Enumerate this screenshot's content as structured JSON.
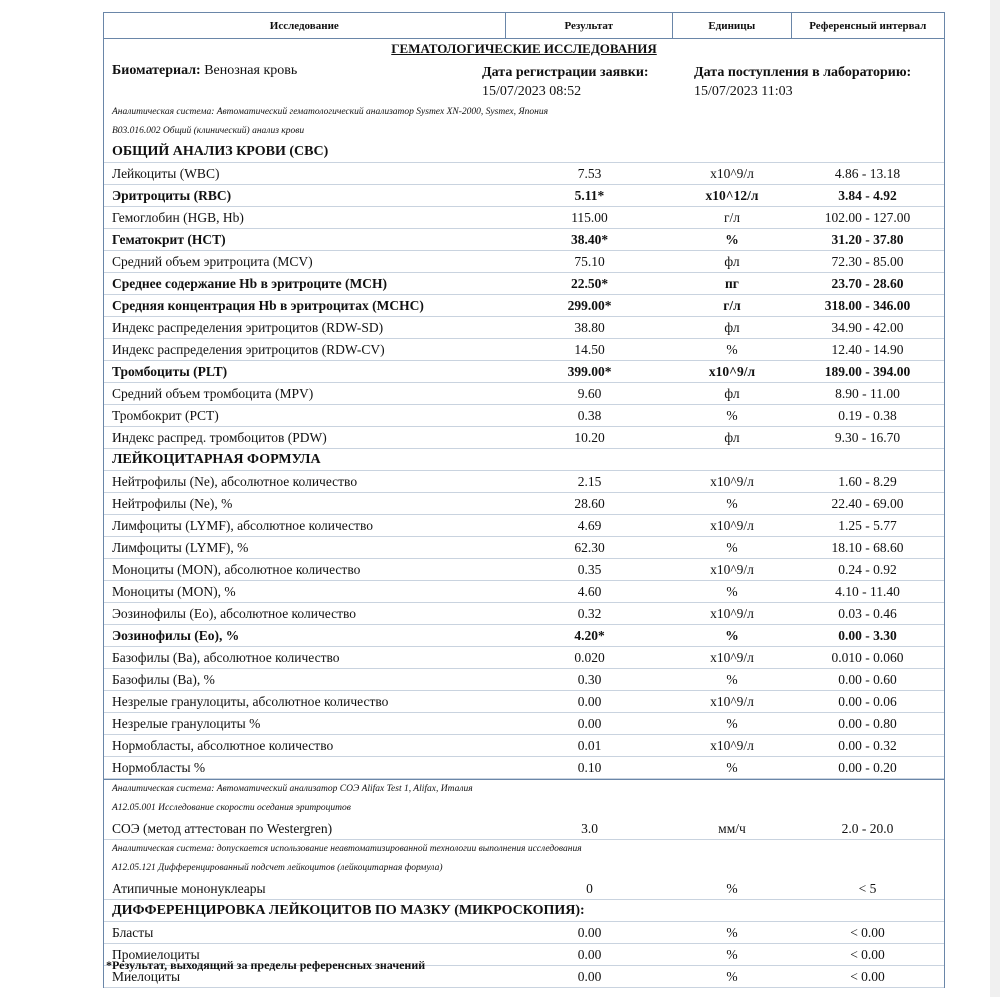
{
  "header": {
    "study": "Исследование",
    "result": "Результат",
    "units": "Единицы",
    "reference": "Референсный интервал"
  },
  "section_title": "ГЕМАТОЛОГИЧЕСКИЕ ИССЛЕДОВАНИЯ",
  "biomaterial": {
    "label": "Биоматериал:",
    "value": "Венозная кровь"
  },
  "registration": {
    "label": "Дата регистрации заявки:",
    "value": "15/07/2023 08:52"
  },
  "arrival": {
    "label": "Дата поступления в лабораторию:",
    "value": "15/07/2023 11:03"
  },
  "notes": [
    "Аналитическая система: Автоматический гематологический анализатор Sysmex XN-2000, Sysmex, Япония",
    "B03.016.002 Общий (клинический) анализ крови",
    "Аналитическая система: Автоматический анализатор СОЭ Alifax Test 1, Alifax, Италия",
    "A12.05.001 Исследование скорости оседания эритроцитов",
    "Аналитическая система: допускается использование неавтоматизированной технологии выполнения исследования",
    "A12.05.121 Дифференцированный подсчет лейкоцитов (лейкоцитарная формула)"
  ],
  "cbc": [
    {
      "name": "ОБЩИЙ АНАЛИЗ КРОВИ (CBC)",
      "section": true
    },
    {
      "name": "Лейкоциты (WBC)",
      "result": "7.53",
      "units": "x10^9/л",
      "ref": "4.86 - 13.18"
    },
    {
      "name": "Эритроциты (RBC)",
      "result": "5.11*",
      "units": "x10^12/л",
      "ref": "3.84 - 4.92",
      "flag": true
    },
    {
      "name": "Гемоглобин (HGB, Hb)",
      "result": "115.00",
      "units": "г/л",
      "ref": "102.00 - 127.00"
    },
    {
      "name": "Гематокрит (HCT)",
      "result": "38.40*",
      "units": "%",
      "ref": "31.20 - 37.80",
      "flag": true
    },
    {
      "name": "Средний объем эритроцита (MCV)",
      "result": "75.10",
      "units": "фл",
      "ref": "72.30 - 85.00"
    },
    {
      "name": "Среднее содержание Hb в эритроците (MCH)",
      "result": "22.50*",
      "units": "пг",
      "ref": "23.70 - 28.60",
      "flag": true
    },
    {
      "name": "Средняя концентрация Hb в эритроцитах (MCHC)",
      "result": "299.00*",
      "units": "г/л",
      "ref": "318.00 - 346.00",
      "flag": true
    },
    {
      "name": "Индекс распределения эритроцитов (RDW-SD)",
      "result": "38.80",
      "units": "фл",
      "ref": "34.90 - 42.00"
    },
    {
      "name": "Индекс распределения эритроцитов (RDW-CV)",
      "result": "14.50",
      "units": "%",
      "ref": "12.40 - 14.90"
    },
    {
      "name": "Тромбоциты (PLT)",
      "result": "399.00*",
      "units": "x10^9/л",
      "ref": "189.00 - 394.00",
      "flag": true
    },
    {
      "name": "Средний объем тромбоцита (MPV)",
      "result": "9.60",
      "units": "фл",
      "ref": "8.90 - 11.00"
    },
    {
      "name": "Тромбокрит (PCT)",
      "result": "0.38",
      "units": "%",
      "ref": "0.19 - 0.38"
    },
    {
      "name": "Индекс распред. тромбоцитов (PDW)",
      "result": "10.20",
      "units": "фл",
      "ref": "9.30 - 16.70"
    },
    {
      "name": "ЛЕЙКОЦИТАРНАЯ ФОРМУЛА",
      "section": true
    },
    {
      "name": "Нейтрофилы (Ne), абсолютное количество",
      "result": "2.15",
      "units": "x10^9/л",
      "ref": "1.60 - 8.29"
    },
    {
      "name": "Нейтрофилы (Ne), %",
      "result": "28.60",
      "units": "%",
      "ref": "22.40 - 69.00"
    },
    {
      "name": "Лимфоциты (LYMF), абсолютное количество",
      "result": "4.69",
      "units": "x10^9/л",
      "ref": "1.25 - 5.77"
    },
    {
      "name": "Лимфоциты (LYMF), %",
      "result": "62.30",
      "units": "%",
      "ref": "18.10 - 68.60"
    },
    {
      "name": "Моноциты (MON), абсолютное количество",
      "result": "0.35",
      "units": "x10^9/л",
      "ref": "0.24 - 0.92"
    },
    {
      "name": "Моноциты (MON), %",
      "result": "4.60",
      "units": "%",
      "ref": "4.10 - 11.40"
    },
    {
      "name": "Эозинофилы (Eo), абсолютное количество",
      "result": "0.32",
      "units": "x10^9/л",
      "ref": "0.03 - 0.46"
    },
    {
      "name": "Эозинофилы (Eo), %",
      "result": "4.20*",
      "units": "%",
      "ref": "0.00 - 3.30",
      "flag": true
    },
    {
      "name": "Базофилы (Ba), абсолютное количество",
      "result": "0.020",
      "units": "x10^9/л",
      "ref": "0.010 - 0.060"
    },
    {
      "name": "Базофилы (Ba), %",
      "result": "0.30",
      "units": "%",
      "ref": "0.00 - 0.60"
    },
    {
      "name": "Незрелые гранулоциты, абсолютное количество",
      "result": "0.00",
      "units": "x10^9/л",
      "ref": "0.00 - 0.06"
    },
    {
      "name": "Незрелые гранулоциты %",
      "result": "0.00",
      "units": "%",
      "ref": "0.00 - 0.80"
    },
    {
      "name": "Нормобласты, абсолютное количество",
      "result": "0.01",
      "units": "x10^9/л",
      "ref": "0.00 - 0.32"
    },
    {
      "name": "Нормобласты %",
      "result": "0.10",
      "units": "%",
      "ref": "0.00 - 0.20"
    }
  ],
  "esr": {
    "name": "СОЭ (метод аттестован по Westergren)",
    "result": "3.0",
    "units": "мм/ч",
    "ref": "2.0 - 20.0"
  },
  "micro": [
    {
      "name": "Атипичные мононуклеары",
      "result": "0",
      "units": "%",
      "ref": "< 5"
    },
    {
      "name": "ДИФФЕРЕНЦИРОВКА ЛЕЙКОЦИТОВ ПО МАЗКУ (МИКРОСКОПИЯ):",
      "section": true
    },
    {
      "name": "Бласты",
      "result": "0.00",
      "units": "%",
      "ref": "< 0.00"
    },
    {
      "name": "Промиелоциты",
      "result": "0.00",
      "units": "%",
      "ref": "< 0.00"
    },
    {
      "name": "Миелоциты",
      "result": "0.00",
      "units": "%",
      "ref": "< 0.00"
    }
  ],
  "footnote": "*Результат, выходящий за пределы референсных значений"
}
